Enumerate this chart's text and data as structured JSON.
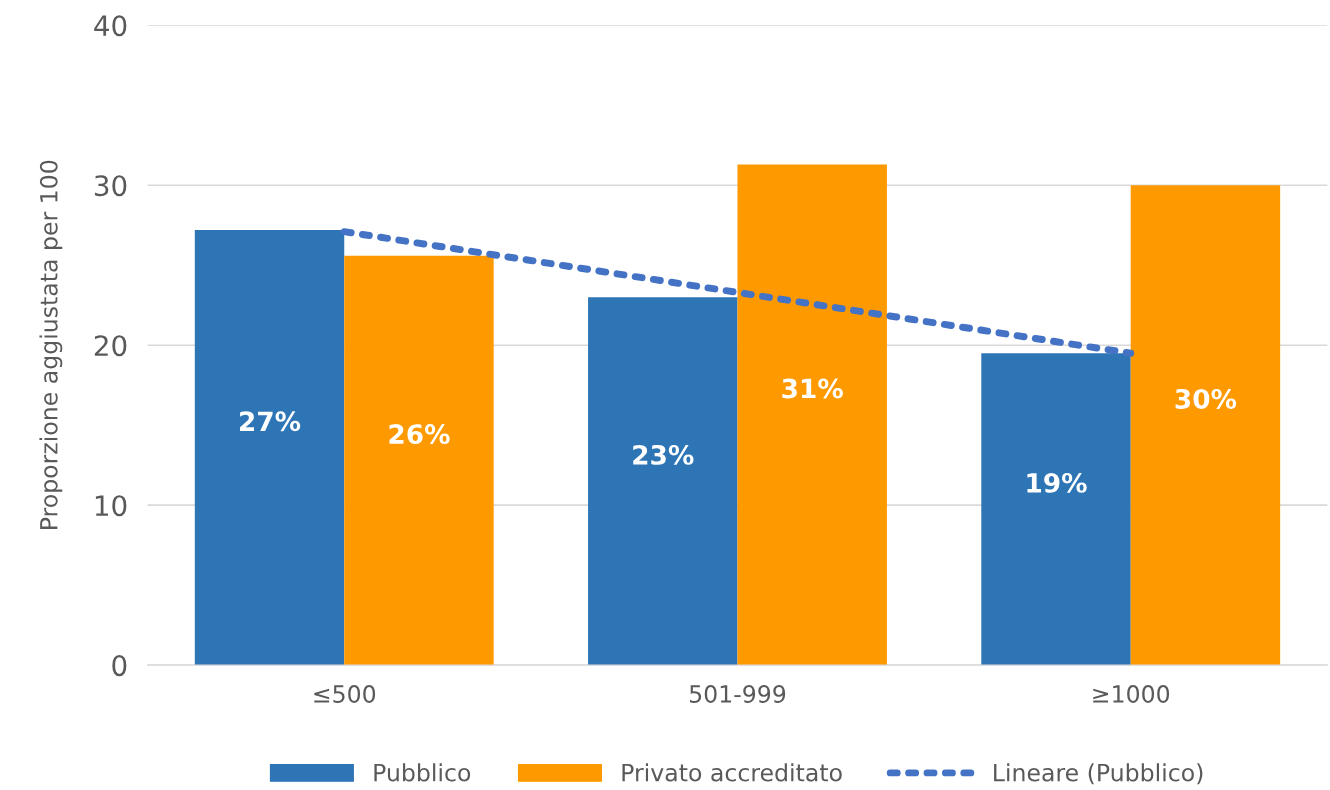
{
  "chart_data": {
    "type": "bar",
    "ylabel": "Proporzione aggiustata per 100",
    "categories": [
      "≤500",
      "501-999",
      "≥1000"
    ],
    "series": [
      {
        "name": "Pubblico",
        "color": "#2e75b6",
        "values": [
          27.2,
          23.0,
          19.5
        ],
        "value_labels": [
          "27%",
          "23%",
          "19%"
        ]
      },
      {
        "name": "Privato accreditato",
        "color": "#ff9900",
        "values": [
          25.6,
          31.3,
          30.0
        ],
        "value_labels": [
          "26%",
          "31%",
          "30%"
        ]
      },
      {
        "name": "Lineare (Pubblico)",
        "type": "line",
        "color": "#4472c4",
        "line_style": "dotted",
        "values": [
          27.1,
          23.3,
          19.5
        ]
      }
    ],
    "ylim": [
      0,
      40
    ],
    "yticks": [
      0,
      10,
      20,
      30,
      40
    ],
    "grid": "y",
    "legend": "bottom"
  }
}
